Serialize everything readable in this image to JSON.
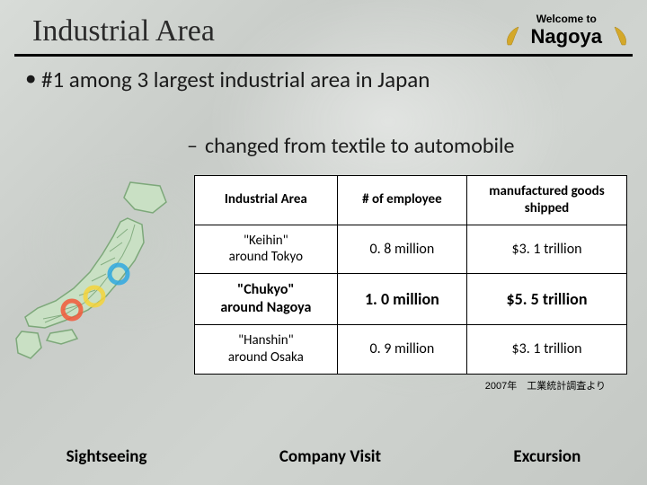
{
  "header": {
    "title": "Industrial Area",
    "welcome_top": "Welcome to",
    "welcome_bottom": "Nagoya",
    "shachi_color": "#d4a82a"
  },
  "bullets": {
    "b1": "#1 among 3 largest industrial area in Japan",
    "b2": "changed from textile to automobile"
  },
  "map": {
    "outline_color": "#7da87a",
    "fill_color": "#c9e0c4",
    "marker_colors": [
      "#2fa8e0",
      "#f5d33b",
      "#f2583a"
    ]
  },
  "table": {
    "columns": [
      "Industrial Area",
      "# of employee",
      "manufactured goods shipped"
    ],
    "rows": [
      {
        "name": "\"Keihin\"\naround Tokyo",
        "employees": "0. 8 million",
        "shipped": "$3. 1 trillion",
        "bold": false
      },
      {
        "name": "\"Chukyo\"\naround Nagoya",
        "employees": "1. 0 million",
        "shipped": "$5. 5 trillion",
        "bold": true
      },
      {
        "name": "\"Hanshin\"\naround Osaka",
        "employees": "0. 9 million",
        "shipped": "$3. 1 trillion",
        "bold": false
      }
    ],
    "col_widths": [
      "33%",
      "30%",
      "37%"
    ]
  },
  "source_note": "2007年　工業統計調査より",
  "footer": {
    "items": [
      "Sightseeing",
      "Company Visit",
      "Excursion"
    ]
  }
}
